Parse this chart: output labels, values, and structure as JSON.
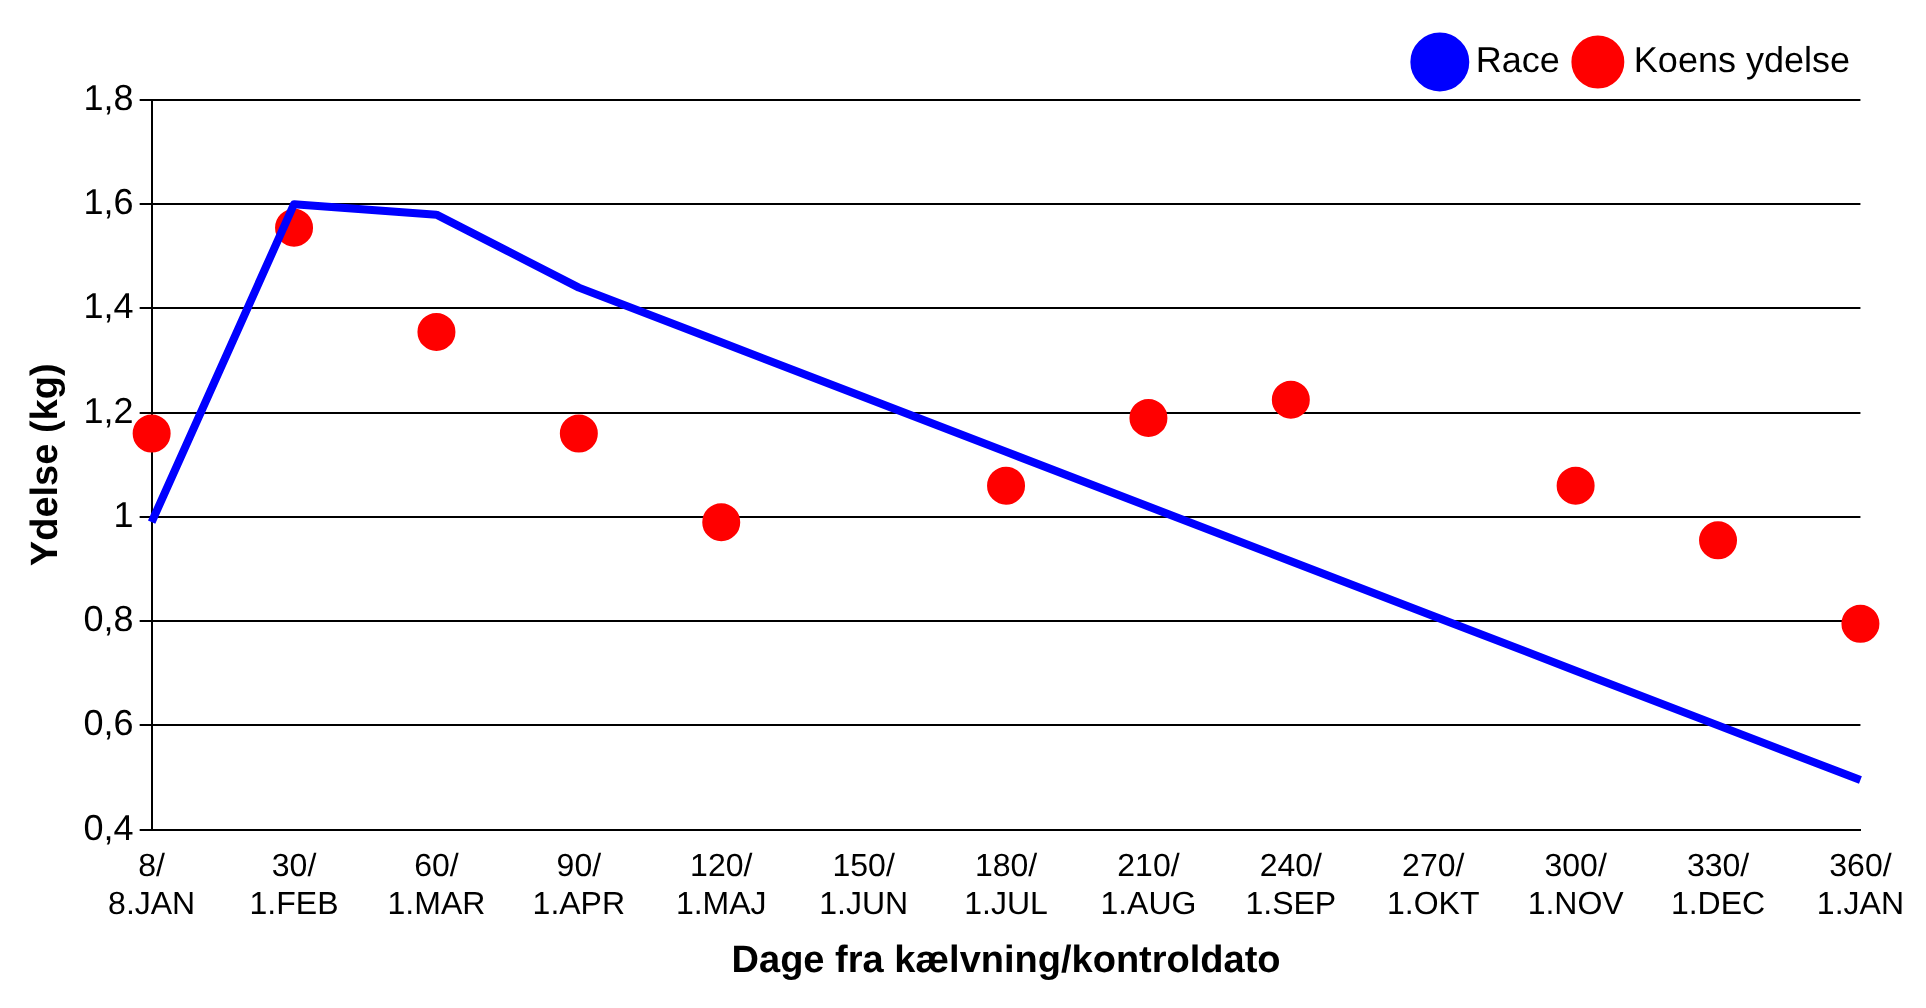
{
  "chart_data": {
    "type": "line",
    "xlabel": "Dage fra kælvning/kontroldato",
    "ylabel": "Ydelse (kg)",
    "categories": [
      "8/\n8.JAN",
      "30/\n1.FEB",
      "60/\n1.MAR",
      "90/\n1.APR",
      "120/\n1.MAJ",
      "150/\n1.JUN",
      "180/\n1.JUL",
      "210/\n1.AUG",
      "240/\n1.SEP",
      "270/\n1.OKT",
      "300/\n1.NOV",
      "330/\n1.DEC",
      "360/\n1.JAN"
    ],
    "series": [
      {
        "name": "Race",
        "type": "line",
        "color": "#0000ff",
        "values": [
          0.99,
          1.6,
          1.58,
          1.44,
          1.335,
          1.23,
          1.125,
          1.02,
          0.915,
          0.81,
          0.705,
          0.6,
          0.495
        ]
      },
      {
        "name": "Koens ydelse",
        "type": "scatter",
        "color": "#ff0000",
        "values": [
          1.16,
          1.555,
          1.355,
          1.16,
          0.99,
          null,
          1.06,
          1.19,
          1.225,
          null,
          1.06,
          0.955,
          0.795
        ]
      }
    ],
    "ylim": [
      0.4,
      1.8
    ],
    "yticks": [
      {
        "value": 0.4,
        "label": "0,4"
      },
      {
        "value": 0.6,
        "label": "0,6"
      },
      {
        "value": 0.8,
        "label": "0,8"
      },
      {
        "value": 1,
        "label": "1"
      },
      {
        "value": 1.2,
        "label": "1,2"
      },
      {
        "value": 1.4,
        "label": "1,4"
      },
      {
        "value": 1.6,
        "label": "1,6"
      },
      {
        "value": 1.8,
        "label": "1,8"
      }
    ],
    "grid": "y",
    "legend": "top right"
  }
}
